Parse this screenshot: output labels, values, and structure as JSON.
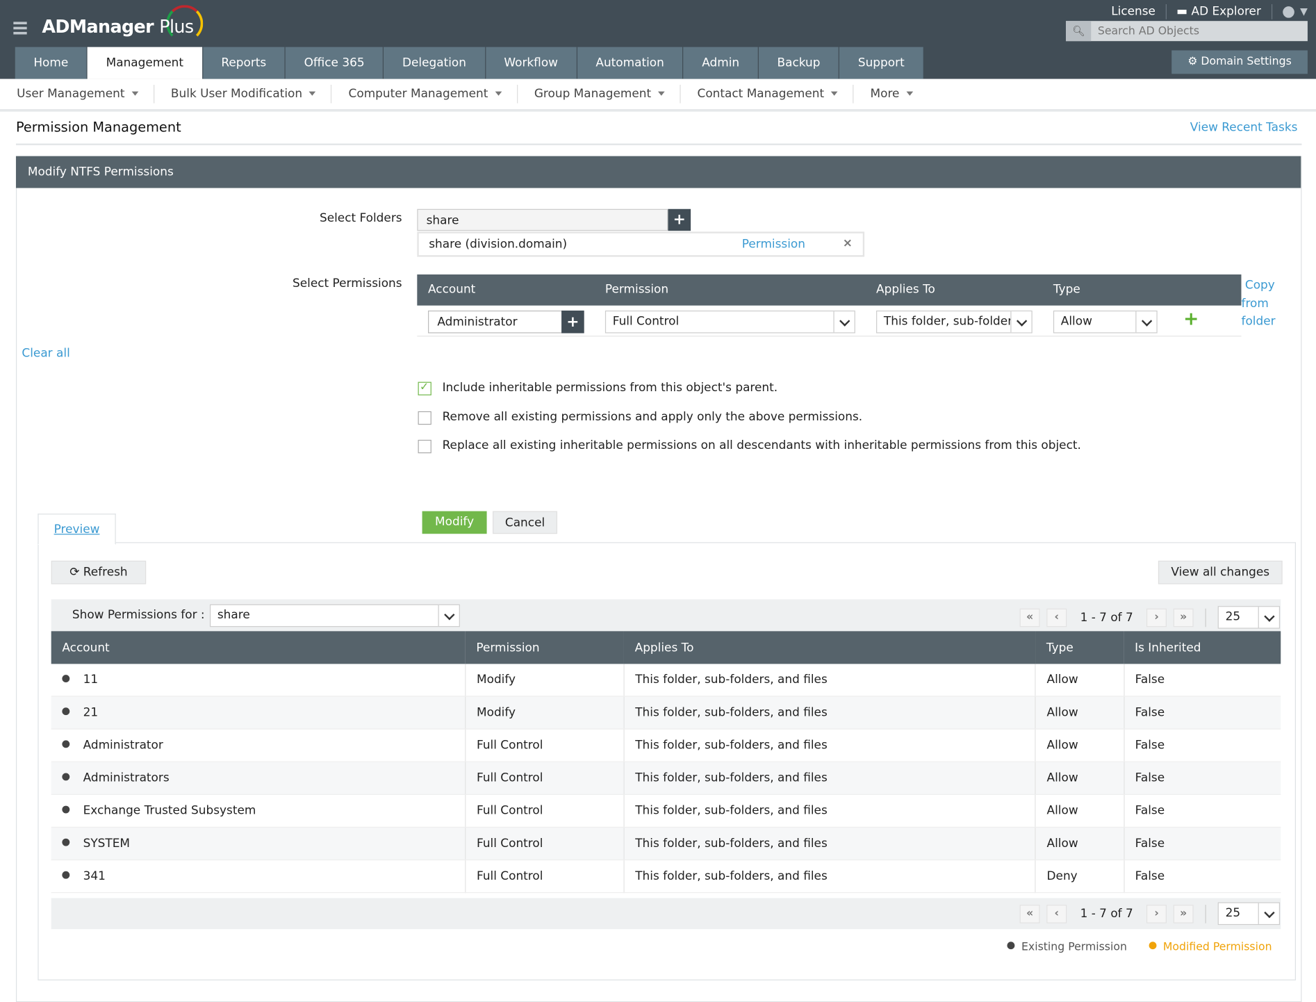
{
  "app": {
    "logo": "ADManager Plus"
  },
  "header": {
    "license": "License",
    "ad_explorer": "AD Explorer",
    "search_placeholder": "Search AD Objects",
    "domain_settings": "Domain Settings"
  },
  "tabs": [
    "Home",
    "Management",
    "Reports",
    "Office 365",
    "Delegation",
    "Workflow",
    "Automation",
    "Admin",
    "Backup",
    "Support"
  ],
  "active_tab": "Management",
  "subnav": [
    "User Management",
    "Bulk User Modification",
    "Computer Management",
    "Group Management",
    "Contact Management",
    "More"
  ],
  "page": {
    "title": "Permission Management",
    "recent_tasks": "View Recent Tasks",
    "panel_title": "Modify NTFS Permissions"
  },
  "form": {
    "select_folders_label": "Select Folders",
    "folder_input": "share",
    "folder_item": "share (division.domain)",
    "folder_item_link": "Permission",
    "select_permissions_label": "Select Permissions",
    "clear_all": "Clear all",
    "grid_headers": [
      "Account",
      "Permission",
      "Applies To",
      "Type"
    ],
    "row": {
      "account": "Administrator",
      "permission": "Full Control",
      "applies_to": "This folder, sub-folder",
      "type": "Allow"
    },
    "copy_from_folder": [
      "Copy",
      "from",
      "folder"
    ],
    "options": [
      {
        "label": "Include inheritable permissions from this object's parent.",
        "checked": true
      },
      {
        "label": "Remove all existing permissions and apply only the above permissions.",
        "checked": false
      },
      {
        "label": "Replace all existing inheritable permissions on all descendants with inheritable permissions from this object.",
        "checked": false
      }
    ],
    "modify": "Modify",
    "cancel": "Cancel"
  },
  "preview": {
    "tab": "Preview",
    "refresh": "Refresh",
    "view_all": "View all changes",
    "show_for_label": "Show Permissions for :",
    "show_for_value": "share",
    "pager": {
      "range": "1 - 7 of  7",
      "page_size": "25"
    },
    "columns": [
      "Account",
      "Permission",
      "Applies To",
      "Type",
      "Is Inherited"
    ],
    "rows": [
      [
        "11",
        "Modify",
        "This folder, sub-folders, and files",
        "Allow",
        "False"
      ],
      [
        "21",
        "Modify",
        "This folder, sub-folders, and files",
        "Allow",
        "False"
      ],
      [
        "Administrator",
        "Full Control",
        "This folder, sub-folders, and files",
        "Allow",
        "False"
      ],
      [
        "Administrators",
        "Full Control",
        "This folder, sub-folders, and files",
        "Allow",
        "False"
      ],
      [
        "Exchange Trusted Subsystem",
        "Full Control",
        "This folder, sub-folders, and files",
        "Allow",
        "False"
      ],
      [
        "SYSTEM",
        "Full Control",
        "This folder, sub-folders, and files",
        "Allow",
        "False"
      ],
      [
        "341",
        "Full Control",
        "This folder, sub-folders, and files",
        "Deny",
        "False"
      ]
    ],
    "legend": {
      "existing": "Existing Permission",
      "modified": "Modified Permission",
      "existing_color": "#444444",
      "modified_color": "#f0a30a"
    }
  },
  "colors": {
    "header": "#414d56",
    "tab": "#607683",
    "accent": "#3b9ad2",
    "modify_btn": "#72b84b"
  }
}
